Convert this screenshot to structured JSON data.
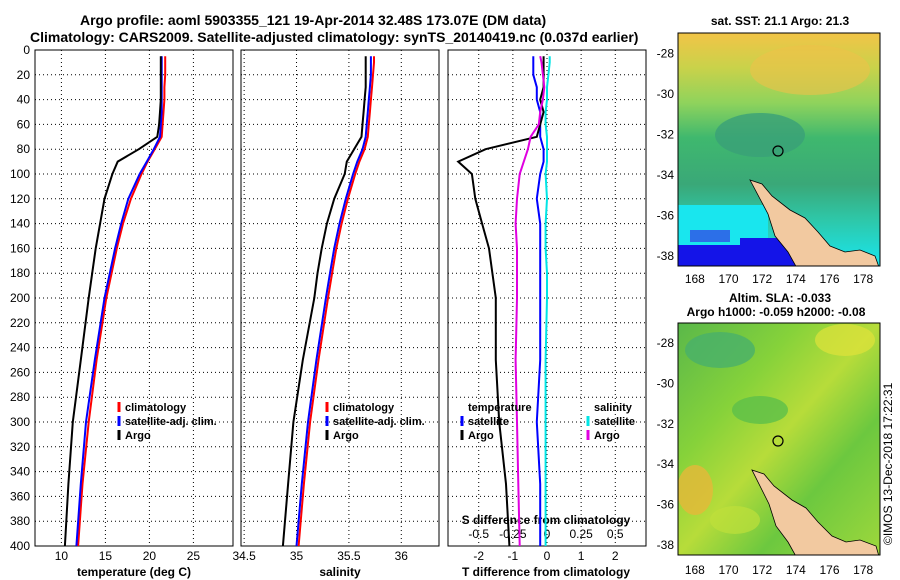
{
  "header": {
    "title_line1": "Argo profile: aoml 5903355_121 19-Apr-2014 32.48S 173.07E (DM data)",
    "title_line2": "Climatology: CARS2009. Satellite-adjusted climatology: synTS_20140419.nc (0.037d earlier)"
  },
  "maps": {
    "sst_title": "sat. SST: 21.1 Argo: 21.3",
    "sla_title1": "Altim. SLA: -0.033",
    "sla_title2": "Argo h1000: -0.059 h2000: -0.08",
    "lon_ticks": [
      "168",
      "170",
      "172",
      "174",
      "176",
      "178"
    ],
    "lat_ticks": [
      "-28",
      "-30",
      "-32",
      "-34",
      "-36",
      "-38"
    ],
    "colors": {
      "sst_warm": "#f2c447",
      "sst_mid": "#8fd35c",
      "sst_green": "#3fb86e",
      "sst_teal": "#2ec7a8",
      "sst_cyan": "#19e6ee",
      "sst_blue": "#1414e8",
      "land": "#f2c9a0",
      "sla_green": "#6cc83f",
      "sla_yellow": "#e0e23a"
    }
  },
  "watermark": "©IMOS 13-Dec-2018 17:22:31",
  "colors": {
    "climatology": "#ff0000",
    "satellite": "#0000ff",
    "argo": "#000000",
    "sal_satellite": "#00e5e5",
    "sal_argo": "#e000e0"
  },
  "chart_data": [
    {
      "type": "line",
      "xlabel": "temperature (deg C)",
      "xlim": [
        7,
        29.5
      ],
      "xticks": [
        10,
        15,
        20,
        25
      ],
      "ylim": [
        400,
        0
      ],
      "yticks": [
        0,
        20,
        40,
        60,
        80,
        100,
        120,
        140,
        160,
        180,
        200,
        220,
        240,
        260,
        280,
        300,
        320,
        340,
        360,
        380,
        400
      ],
      "legend": [
        "climatology",
        "satellite-adj. clim.",
        "Argo"
      ],
      "legend_placement": "lower-right",
      "depth": [
        5,
        10,
        20,
        30,
        40,
        50,
        60,
        70,
        80,
        90,
        100,
        120,
        140,
        160,
        180,
        200,
        250,
        300,
        350,
        400
      ],
      "series": [
        {
          "name": "climatology",
          "values": [
            21.8,
            21.8,
            21.8,
            21.7,
            21.7,
            21.6,
            21.5,
            21.4,
            20.6,
            19.8,
            19.1,
            17.9,
            17.0,
            16.3,
            15.7,
            15.1,
            14.0,
            13.1,
            12.4,
            11.9
          ]
        },
        {
          "name": "satellite-adj. clim.",
          "values": [
            21.4,
            21.4,
            21.4,
            21.4,
            21.4,
            21.4,
            21.3,
            21.2,
            20.5,
            19.7,
            18.9,
            17.6,
            16.8,
            16.1,
            15.5,
            14.9,
            13.8,
            12.8,
            12.2,
            11.7
          ]
        },
        {
          "name": "Argo",
          "values": [
            21.3,
            21.3,
            21.3,
            21.3,
            21.3,
            21.2,
            21.1,
            20.9,
            18.8,
            16.4,
            15.8,
            14.9,
            14.4,
            13.9,
            13.5,
            13.1,
            12.2,
            11.3,
            10.8,
            10.4
          ]
        }
      ]
    },
    {
      "type": "line",
      "xlabel": "salinity",
      "xlim": [
        34.47,
        36.36
      ],
      "xticks": [
        34.5,
        35,
        35.5,
        36
      ],
      "xtick_labels": [
        "34.5",
        "35",
        "35.5",
        "36"
      ],
      "ylim": [
        400,
        0
      ],
      "legend": [
        "climatology",
        "satellite-adj. clim.",
        "Argo"
      ],
      "legend_placement": "lower-right",
      "depth": [
        5,
        10,
        20,
        30,
        40,
        50,
        60,
        70,
        80,
        90,
        100,
        120,
        140,
        160,
        180,
        200,
        250,
        300,
        350,
        400
      ],
      "series": [
        {
          "name": "climatology",
          "values": [
            35.74,
            35.74,
            35.73,
            35.72,
            35.71,
            35.7,
            35.69,
            35.68,
            35.65,
            35.6,
            35.56,
            35.49,
            35.43,
            35.38,
            35.34,
            35.3,
            35.21,
            35.13,
            35.07,
            35.02
          ]
        },
        {
          "name": "satellite-adj. clim.",
          "values": [
            35.71,
            35.71,
            35.71,
            35.7,
            35.69,
            35.68,
            35.67,
            35.66,
            35.63,
            35.58,
            35.54,
            35.47,
            35.41,
            35.36,
            35.32,
            35.28,
            35.19,
            35.11,
            35.05,
            35.0
          ]
        },
        {
          "name": "Argo",
          "values": [
            35.66,
            35.66,
            35.66,
            35.66,
            35.65,
            35.64,
            35.63,
            35.62,
            35.55,
            35.48,
            35.46,
            35.36,
            35.29,
            35.24,
            35.2,
            35.17,
            35.06,
            34.97,
            34.92,
            34.87
          ]
        }
      ]
    },
    {
      "type": "line",
      "xlabel": "T difference from climatology",
      "top_xlabel": "S difference from climatology",
      "xlim": [
        -2.9,
        2.9
      ],
      "xticks": [
        -2,
        -1,
        0,
        1,
        2
      ],
      "top_xticks": [
        -0.5,
        -0.25,
        0,
        0.25,
        0.5
      ],
      "top_xtick_labels": [
        "-0.5",
        "-0.25",
        "0",
        "0.25",
        "0.5"
      ],
      "s_scale_factor": 4,
      "ylim": [
        400,
        0
      ],
      "legend_temperature_title": "temperature",
      "legend_salinity_title": "salinity",
      "legend": [
        "satellite",
        "Argo"
      ],
      "legend_placement": "lower-center",
      "depth": [
        5,
        10,
        20,
        30,
        40,
        50,
        60,
        70,
        80,
        90,
        100,
        120,
        140,
        160,
        180,
        200,
        250,
        300,
        350,
        400
      ],
      "series": [
        {
          "name": "temperature satellite",
          "values": [
            -0.4,
            -0.4,
            -0.4,
            -0.3,
            -0.3,
            -0.2,
            -0.2,
            -0.2,
            -0.1,
            -0.1,
            -0.2,
            -0.3,
            -0.2,
            -0.2,
            -0.2,
            -0.2,
            -0.2,
            -0.3,
            -0.2,
            -0.2
          ]
        },
        {
          "name": "temperature Argo",
          "values": [
            -0.1,
            -0.1,
            -0.1,
            -0.1,
            -0.2,
            -0.1,
            -0.2,
            -0.3,
            -1.8,
            -2.6,
            -2.2,
            -2.1,
            -1.9,
            -1.7,
            -1.6,
            -1.5,
            -1.5,
            -1.4,
            -1.2,
            -1.1
          ]
        },
        {
          "name": "salinity satellite",
          "values": [
            0.02,
            0.02,
            0.01,
            0.0,
            0.0,
            -0.01,
            -0.01,
            0.0,
            0.0,
            0.0,
            -0.01,
            0.0,
            -0.01,
            -0.01,
            0.0,
            0.0,
            -0.01,
            -0.01,
            -0.01,
            -0.01
          ]
        },
        {
          "name": "salinity Argo",
          "values": [
            -0.05,
            -0.04,
            -0.03,
            -0.02,
            -0.03,
            -0.05,
            -0.06,
            -0.12,
            -0.14,
            -0.17,
            -0.2,
            -0.22,
            -0.23,
            -0.22,
            -0.22,
            -0.22,
            -0.23,
            -0.22,
            -0.21,
            -0.2
          ]
        }
      ]
    }
  ]
}
